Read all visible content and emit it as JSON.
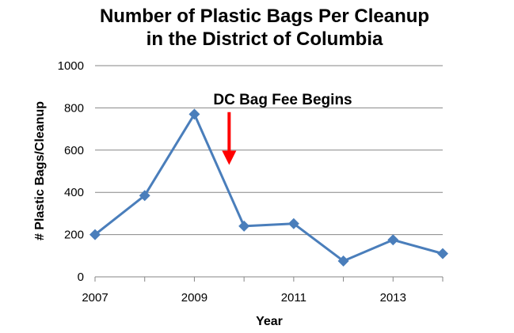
{
  "chart_data": {
    "type": "line",
    "title_line1": "Number of Plastic Bags Per Cleanup",
    "title_line2": "in the District of Columbia",
    "xlabel": "Year",
    "ylabel": "# Plastic Bags/Cleanup",
    "x": [
      2007,
      2008,
      2009,
      2010,
      2011,
      2012,
      2013,
      2014
    ],
    "xticks": [
      "2007",
      "2009",
      "2011",
      "2013"
    ],
    "xtick_values": [
      2007,
      2009,
      2011,
      2013
    ],
    "xlim": [
      2007,
      2014
    ],
    "ylim": [
      0,
      1000
    ],
    "yticks": [
      "0",
      "200",
      "400",
      "600",
      "800",
      "1000"
    ],
    "ytick_values": [
      0,
      200,
      400,
      600,
      800,
      1000
    ],
    "grid": "horizontal",
    "series": [
      {
        "values": [
          200,
          385,
          770,
          240,
          252,
          75,
          175,
          110
        ],
        "color": "#4A7EBB",
        "marker": "diamond"
      }
    ],
    "annotations": [
      {
        "text": "DC Bag Fee Begins",
        "arrow_x": 2009.7,
        "arrow_from_y": 780,
        "arrow_to_y": 530,
        "arrow_color": "#FF0000"
      }
    ]
  }
}
